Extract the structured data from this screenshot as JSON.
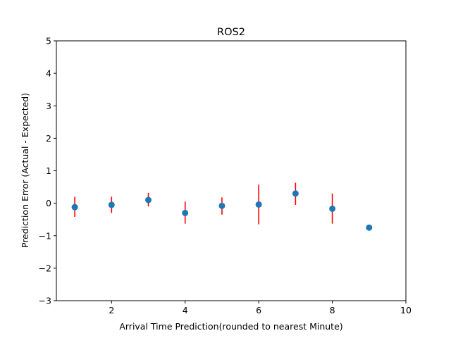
{
  "chart_data": {
    "type": "scatter",
    "title": "ROS2",
    "xlabel": "Arrival Time Prediction(rounded to nearest Minute)",
    "ylabel": "Prediction Error (Actual - Expected)",
    "xlim": [
      0.5,
      10
    ],
    "ylim": [
      -3,
      5
    ],
    "xticks": [
      2,
      4,
      6,
      8,
      10
    ],
    "yticks": [
      -3,
      -2,
      -1,
      0,
      1,
      2,
      3,
      4,
      5
    ],
    "grid": false,
    "series": [
      {
        "marker_color": "#1f77b4",
        "error_bar_color": "#ff0000",
        "points": [
          {
            "x": 1,
            "y": -0.12,
            "err_low": -0.42,
            "err_high": 0.2
          },
          {
            "x": 2,
            "y": -0.05,
            "err_low": -0.3,
            "err_high": 0.2
          },
          {
            "x": 3,
            "y": 0.1,
            "err_low": -0.1,
            "err_high": 0.32
          },
          {
            "x": 4,
            "y": -0.3,
            "err_low": -0.63,
            "err_high": 0.05
          },
          {
            "x": 5,
            "y": -0.08,
            "err_low": -0.35,
            "err_high": 0.18
          },
          {
            "x": 6,
            "y": -0.04,
            "err_low": -0.65,
            "err_high": 0.57
          },
          {
            "x": 7,
            "y": 0.3,
            "err_low": -0.05,
            "err_high": 0.63
          },
          {
            "x": 8,
            "y": -0.17,
            "err_low": -0.63,
            "err_high": 0.3
          },
          {
            "x": 9,
            "y": -0.75,
            "err_low": -0.75,
            "err_high": -0.75
          }
        ]
      }
    ]
  }
}
